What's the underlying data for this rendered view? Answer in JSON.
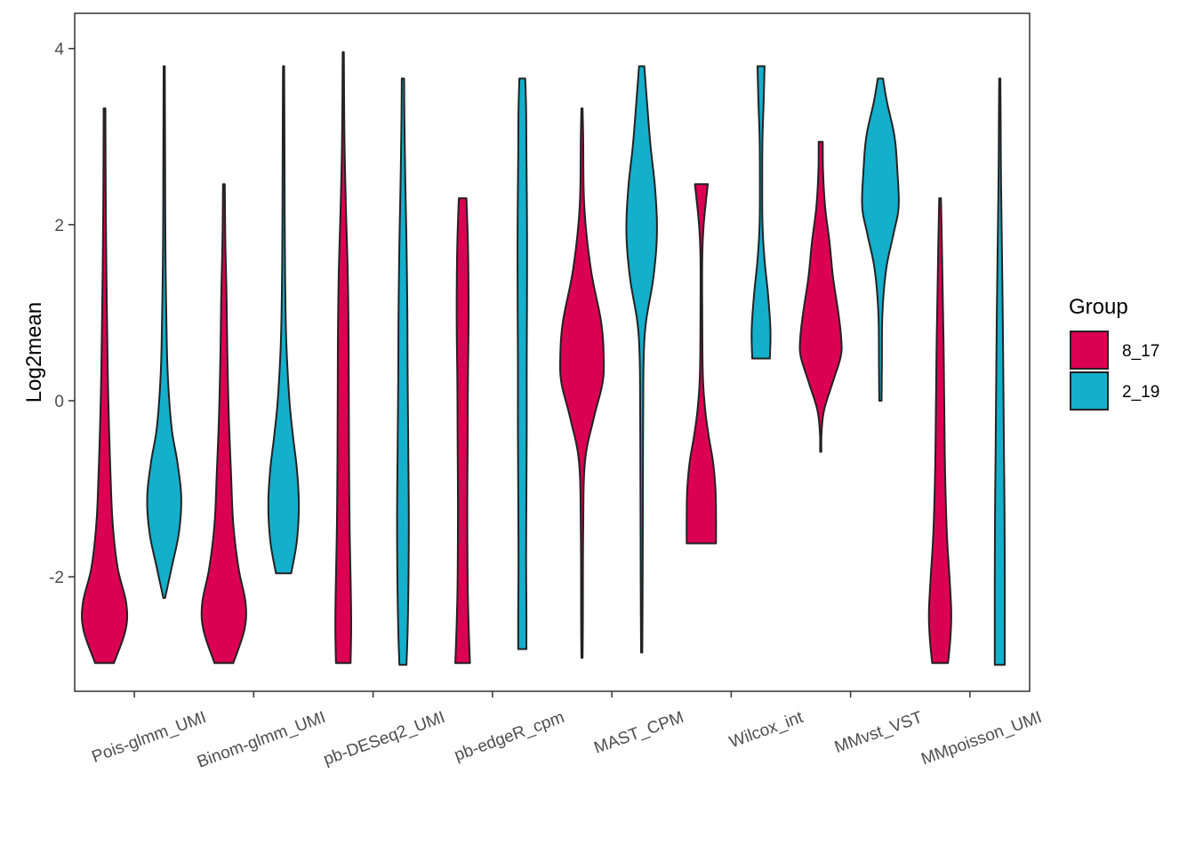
{
  "chart_data": {
    "type": "violin",
    "title": "",
    "xlabel": "",
    "ylabel": "Log2mean",
    "ylim": [
      -3.3,
      4.4
    ],
    "yticks": [
      {
        "value": -2,
        "label": "-2"
      },
      {
        "value": 0,
        "label": "0"
      },
      {
        "value": 2,
        "label": "2"
      },
      {
        "value": 4,
        "label": "4"
      }
    ],
    "categories": [
      "Pois-glmm_UMI",
      "Binom-glmm_UMI",
      "pb-DESeq2_UMI",
      "pb-edgeR_cpm",
      "MAST_CPM",
      "Wilcox_int",
      "MMvst_VST",
      "MMpoisson_UMI"
    ],
    "legend": {
      "title": "Group",
      "placement": "right",
      "entries": [
        {
          "name": "8_17",
          "color": "#dc0052"
        },
        {
          "name": "2_19",
          "color": "#14afcb"
        }
      ]
    },
    "series": [
      {
        "name": "8_17",
        "color": "#dc0052",
        "violins": [
          {
            "category": "Pois-glmm_UMI",
            "min": -2.98,
            "max": 3.32,
            "profile": [
              [
                -2.98,
                0.32
              ],
              [
                -2.6,
                0.72
              ],
              [
                -2.3,
                0.74
              ],
              [
                -1.9,
                0.45
              ],
              [
                -1.4,
                0.28
              ],
              [
                -0.8,
                0.2
              ],
              [
                0,
                0.13
              ],
              [
                0.8,
                0.09
              ],
              [
                1.6,
                0.06
              ],
              [
                2.4,
                0.04
              ],
              [
                3.32,
                0.03
              ]
            ]
          },
          {
            "category": "Binom-glmm_UMI",
            "min": -2.98,
            "max": 2.46,
            "profile": [
              [
                -2.98,
                0.32
              ],
              [
                -2.6,
                0.7
              ],
              [
                -2.3,
                0.74
              ],
              [
                -1.9,
                0.5
              ],
              [
                -1.4,
                0.32
              ],
              [
                -0.8,
                0.24
              ],
              [
                -0.2,
                0.17
              ],
              [
                0.5,
                0.12
              ],
              [
                1.2,
                0.09
              ],
              [
                1.8,
                0.05
              ],
              [
                2.46,
                0.03
              ]
            ]
          },
          {
            "category": "pb-DESeq2_UMI",
            "min": -2.98,
            "max": 3.96,
            "profile": [
              [
                -2.98,
                0.25
              ],
              [
                -2.6,
                0.27
              ],
              [
                -2.2,
                0.26
              ],
              [
                -1.5,
                0.22
              ],
              [
                -0.8,
                0.2
              ],
              [
                0,
                0.19
              ],
              [
                0.8,
                0.18
              ],
              [
                1.5,
                0.15
              ],
              [
                2.2,
                0.09
              ],
              [
                3,
                0.04
              ],
              [
                3.96,
                0.02
              ]
            ]
          },
          {
            "category": "pb-edgeR_cpm",
            "min": -2.98,
            "max": 2.3,
            "profile": [
              [
                -2.98,
                0.25
              ],
              [
                -2.5,
                0.2
              ],
              [
                -2,
                0.17
              ],
              [
                -1.2,
                0.16
              ],
              [
                -0.5,
                0.17
              ],
              [
                0.2,
                0.18
              ],
              [
                0.8,
                0.2
              ],
              [
                1.3,
                0.2
              ],
              [
                1.8,
                0.18
              ],
              [
                2.3,
                0.13
              ]
            ]
          },
          {
            "category": "MAST_CPM",
            "min": -2.92,
            "max": 3.32,
            "profile": [
              [
                -2.92,
                0.02
              ],
              [
                -2.5,
                0.03
              ],
              [
                -1.5,
                0.04
              ],
              [
                -0.7,
                0.1
              ],
              [
                -0.2,
                0.4
              ],
              [
                0.2,
                0.7
              ],
              [
                0.5,
                0.74
              ],
              [
                0.9,
                0.65
              ],
              [
                1.5,
                0.3
              ],
              [
                2.2,
                0.08
              ],
              [
                3,
                0.04
              ],
              [
                3.32,
                0.02
              ]
            ]
          },
          {
            "category": "Wilcox_int",
            "min": -1.62,
            "max": 2.46,
            "profile": [
              [
                -1.62,
                0.5
              ],
              [
                -1.3,
                0.5
              ],
              [
                -1,
                0.48
              ],
              [
                -0.7,
                0.4
              ],
              [
                -0.4,
                0.25
              ],
              [
                -0.1,
                0.13
              ],
              [
                0.3,
                0.05
              ],
              [
                1,
                0.03
              ],
              [
                1.6,
                0.03
              ],
              [
                2,
                0.08
              ],
              [
                2.46,
                0.22
              ]
            ]
          },
          {
            "category": "MMvst_VST",
            "min": -0.58,
            "max": 2.94,
            "profile": [
              [
                -0.58,
                0.02
              ],
              [
                -0.35,
                0.03
              ],
              [
                -0.1,
                0.12
              ],
              [
                0.2,
                0.4
              ],
              [
                0.5,
                0.68
              ],
              [
                0.7,
                0.7
              ],
              [
                1,
                0.6
              ],
              [
                1.4,
                0.42
              ],
              [
                1.8,
                0.3
              ],
              [
                2.2,
                0.15
              ],
              [
                2.6,
                0.08
              ],
              [
                2.94,
                0.07
              ]
            ]
          },
          {
            "category": "MMpoisson_UMI",
            "min": -2.98,
            "max": 2.3,
            "profile": [
              [
                -2.98,
                0.27
              ],
              [
                -2.7,
                0.35
              ],
              [
                -2.4,
                0.38
              ],
              [
                -2,
                0.32
              ],
              [
                -1.5,
                0.23
              ],
              [
                -0.8,
                0.17
              ],
              [
                0,
                0.14
              ],
              [
                0.6,
                0.12
              ],
              [
                1.2,
                0.09
              ],
              [
                1.8,
                0.06
              ],
              [
                2.3,
                0.03
              ]
            ]
          }
        ]
      },
      {
        "name": "2_19",
        "color": "#14afcb",
        "violins": [
          {
            "category": "Pois-glmm_UMI",
            "min": -2.24,
            "max": 3.8,
            "profile": [
              [
                -2.24,
                0.03
              ],
              [
                -1.9,
                0.25
              ],
              [
                -1.5,
                0.5
              ],
              [
                -1.1,
                0.58
              ],
              [
                -0.7,
                0.45
              ],
              [
                -0.3,
                0.25
              ],
              [
                0.3,
                0.12
              ],
              [
                1,
                0.07
              ],
              [
                1.8,
                0.04
              ],
              [
                2.8,
                0.03
              ],
              [
                3.8,
                0.02
              ]
            ]
          },
          {
            "category": "Binom-glmm_UMI",
            "min": -1.96,
            "max": 3.8,
            "profile": [
              [
                -1.96,
                0.26
              ],
              [
                -1.6,
                0.45
              ],
              [
                -1.2,
                0.52
              ],
              [
                -0.8,
                0.46
              ],
              [
                -0.4,
                0.32
              ],
              [
                0,
                0.2
              ],
              [
                0.6,
                0.1
              ],
              [
                1.2,
                0.06
              ],
              [
                2,
                0.04
              ],
              [
                3,
                0.03
              ],
              [
                3.8,
                0.02
              ]
            ]
          },
          {
            "category": "pb-DESeq2_UMI",
            "min": -3.0,
            "max": 3.66,
            "profile": [
              [
                -3,
                0.12
              ],
              [
                -2.6,
                0.16
              ],
              [
                -2,
                0.19
              ],
              [
                -1.3,
                0.2
              ],
              [
                -0.5,
                0.18
              ],
              [
                0.3,
                0.16
              ],
              [
                1,
                0.15
              ],
              [
                1.8,
                0.12
              ],
              [
                2.5,
                0.08
              ],
              [
                3.2,
                0.05
              ],
              [
                3.66,
                0.04
              ]
            ]
          },
          {
            "category": "pb-edgeR_cpm",
            "min": -2.82,
            "max": 3.66,
            "profile": [
              [
                -2.82,
                0.14
              ],
              [
                -2.4,
                0.14
              ],
              [
                -1.8,
                0.13
              ],
              [
                -1,
                0.14
              ],
              [
                -0.3,
                0.15
              ],
              [
                0.4,
                0.15
              ],
              [
                1.2,
                0.16
              ],
              [
                2,
                0.16
              ],
              [
                2.8,
                0.14
              ],
              [
                3.3,
                0.13
              ],
              [
                3.66,
                0.1
              ]
            ]
          },
          {
            "category": "MAST_CPM",
            "min": -2.86,
            "max": 3.8,
            "profile": [
              [
                -2.86,
                0.02
              ],
              [
                -2.3,
                0.03
              ],
              [
                -1.2,
                0.04
              ],
              [
                -0.2,
                0.05
              ],
              [
                0.5,
                0.07
              ],
              [
                0.9,
                0.15
              ],
              [
                1.4,
                0.4
              ],
              [
                1.9,
                0.52
              ],
              [
                2.4,
                0.46
              ],
              [
                2.9,
                0.3
              ],
              [
                3.4,
                0.18
              ],
              [
                3.8,
                0.09
              ]
            ]
          },
          {
            "category": "Wilcox_int",
            "min": 0.48,
            "max": 3.8,
            "profile": [
              [
                0.48,
                0.3
              ],
              [
                0.8,
                0.32
              ],
              [
                1.2,
                0.24
              ],
              [
                1.6,
                0.12
              ],
              [
                2,
                0.05
              ],
              [
                2.5,
                0.04
              ],
              [
                3,
                0.05
              ],
              [
                3.4,
                0.09
              ],
              [
                3.8,
                0.12
              ]
            ]
          },
          {
            "category": "MMvst_VST",
            "min": 0.0,
            "max": 3.66,
            "profile": [
              [
                0,
                0.04
              ],
              [
                0.4,
                0.05
              ],
              [
                1,
                0.07
              ],
              [
                1.5,
                0.2
              ],
              [
                1.9,
                0.45
              ],
              [
                2.2,
                0.62
              ],
              [
                2.6,
                0.58
              ],
              [
                3,
                0.48
              ],
              [
                3.4,
                0.22
              ],
              [
                3.66,
                0.09
              ]
            ]
          },
          {
            "category": "MMpoisson_UMI",
            "min": -3.0,
            "max": 3.66,
            "profile": [
              [
                -3,
                0.17
              ],
              [
                -2.6,
                0.17
              ],
              [
                -2,
                0.17
              ],
              [
                -1.2,
                0.16
              ],
              [
                -0.5,
                0.14
              ],
              [
                0.3,
                0.12
              ],
              [
                1,
                0.1
              ],
              [
                1.8,
                0.07
              ],
              [
                2.6,
                0.04
              ],
              [
                3.2,
                0.03
              ],
              [
                3.66,
                0.02
              ]
            ]
          }
        ]
      }
    ]
  }
}
